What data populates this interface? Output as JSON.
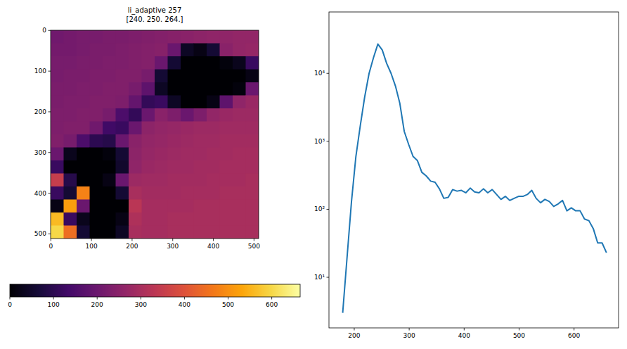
{
  "chart_data": [
    {
      "type": "heatmap",
      "title": "li_adaptive 257",
      "subtitle": "[240. 250. 264.]",
      "xlim": [
        -0.5,
        511.5
      ],
      "ylim": [
        511.5,
        -0.5
      ],
      "xticks": [
        0,
        100,
        200,
        300,
        400,
        500
      ],
      "yticks": [
        0,
        100,
        200,
        300,
        400,
        500
      ],
      "clim": [
        0,
        665
      ],
      "colorbar_ticks": [
        0,
        100,
        200,
        300,
        400,
        500,
        600
      ],
      "cells": [
        [
          210,
          215,
          220,
          220,
          225,
          225,
          230,
          235,
          240,
          245,
          250,
          255,
          260,
          260,
          265,
          265
        ],
        [
          215,
          215,
          220,
          225,
          225,
          230,
          235,
          240,
          245,
          200,
          40,
          20,
          60,
          250,
          265,
          270
        ],
        [
          220,
          220,
          225,
          225,
          230,
          230,
          235,
          240,
          200,
          60,
          0,
          0,
          0,
          10,
          30,
          120
        ],
        [
          220,
          225,
          225,
          230,
          230,
          235,
          235,
          220,
          60,
          0,
          0,
          0,
          0,
          0,
          0,
          20
        ],
        [
          225,
          225,
          230,
          230,
          235,
          235,
          220,
          180,
          40,
          0,
          0,
          0,
          0,
          0,
          10,
          200
        ],
        [
          225,
          230,
          230,
          235,
          235,
          230,
          190,
          110,
          120,
          40,
          0,
          0,
          20,
          180,
          260,
          275
        ],
        [
          230,
          230,
          235,
          235,
          220,
          150,
          110,
          200,
          250,
          230,
          200,
          230,
          265,
          275,
          280,
          280
        ],
        [
          230,
          235,
          235,
          210,
          130,
          120,
          200,
          255,
          265,
          270,
          275,
          280,
          280,
          285,
          285,
          285
        ],
        [
          235,
          220,
          150,
          100,
          90,
          200,
          250,
          265,
          270,
          275,
          280,
          285,
          285,
          290,
          290,
          290
        ],
        [
          200,
          30,
          0,
          0,
          10,
          60,
          255,
          270,
          275,
          280,
          285,
          285,
          290,
          290,
          295,
          295
        ],
        [
          120,
          0,
          0,
          0,
          0,
          50,
          260,
          275,
          280,
          285,
          285,
          290,
          290,
          295,
          295,
          295
        ],
        [
          350,
          90,
          0,
          0,
          20,
          200,
          280,
          285,
          285,
          290,
          290,
          290,
          295,
          295,
          295,
          300
        ],
        [
          120,
          60,
          480,
          0,
          0,
          60,
          300,
          290,
          290,
          290,
          295,
          295,
          295,
          300,
          300,
          300
        ],
        [
          20,
          520,
          200,
          0,
          0,
          0,
          330,
          295,
          295,
          295,
          295,
          300,
          300,
          300,
          300,
          300
        ],
        [
          560,
          120,
          30,
          0,
          0,
          20,
          310,
          295,
          295,
          300,
          300,
          300,
          300,
          300,
          300,
          300
        ],
        [
          600,
          450,
          60,
          0,
          0,
          40,
          300,
          295,
          295,
          300,
          300,
          300,
          300,
          300,
          300,
          300
        ]
      ]
    },
    {
      "type": "line",
      "log": "y",
      "color": "#1f77b4",
      "xlim": [
        154,
        681
      ],
      "xticks": [
        200,
        300,
        400,
        500,
        600
      ],
      "ylim": [
        1.8,
        80000
      ],
      "yticks": [
        {
          "value": 10,
          "label": "10¹"
        },
        {
          "value": 100,
          "label": "10²"
        },
        {
          "value": 1000,
          "label": "10³"
        },
        {
          "value": 10000,
          "label": "10⁴"
        }
      ],
      "x": [
        179,
        187,
        195,
        203,
        211,
        219,
        227,
        235,
        243,
        251,
        259,
        267,
        275,
        283,
        291,
        299,
        307,
        315,
        323,
        331,
        339,
        347,
        355,
        363,
        371,
        379,
        387,
        395,
        403,
        411,
        419,
        427,
        435,
        443,
        451,
        459,
        467,
        475,
        483,
        491,
        499,
        507,
        515,
        523,
        531,
        539,
        547,
        555,
        563,
        571,
        579,
        587,
        595,
        603,
        611,
        619,
        627,
        635,
        643,
        651,
        659
      ],
      "values": [
        3,
        20,
        130,
        600,
        1700,
        4500,
        10000,
        17000,
        27000,
        22000,
        14000,
        10000,
        6500,
        3600,
        1400,
        900,
        600,
        520,
        350,
        310,
        260,
        250,
        200,
        145,
        150,
        195,
        185,
        190,
        175,
        205,
        180,
        175,
        200,
        175,
        195,
        165,
        140,
        155,
        135,
        145,
        155,
        155,
        165,
        190,
        145,
        125,
        140,
        130,
        110,
        120,
        135,
        95,
        105,
        95,
        95,
        72,
        68,
        52,
        32,
        32,
        23
      ]
    }
  ]
}
